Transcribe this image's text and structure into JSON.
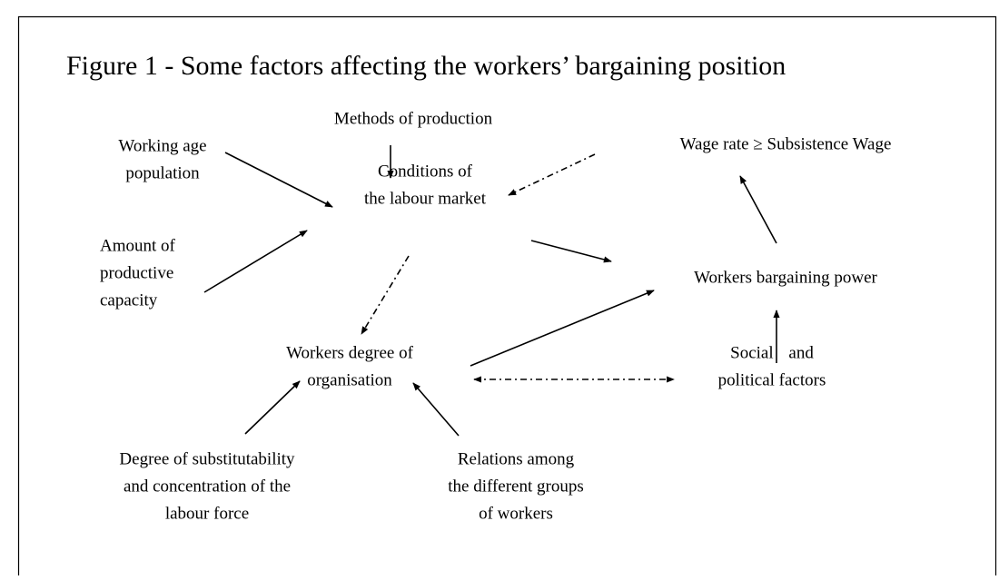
{
  "title": "Figure 1 - Some factors affecting the workers’ bargaining position",
  "nodes": [
    {
      "lines": [
        "Methods of production"
      ]
    },
    {
      "lines": [
        "Working age",
        "population"
      ]
    },
    {
      "lines": [
        "Conditions of",
        "the labour market"
      ]
    },
    {
      "lines": [
        "Wage rate ≥ Subsistence Wage"
      ]
    },
    {
      "lines": [
        "Amount of",
        "productive",
        "capacity"
      ]
    },
    {
      "lines": [
        "Workers bargaining power"
      ]
    },
    {
      "lines": [
        "Workers degree of",
        "organisation"
      ]
    },
    {
      "lines": [
        "Social and",
        "political factors"
      ]
    },
    {
      "lines": [
        "Degree of substitutability",
        "and concentration of the",
        "labour force"
      ]
    },
    {
      "lines": [
        "Relations among",
        "the different groups",
        "of workers"
      ]
    }
  ]
}
